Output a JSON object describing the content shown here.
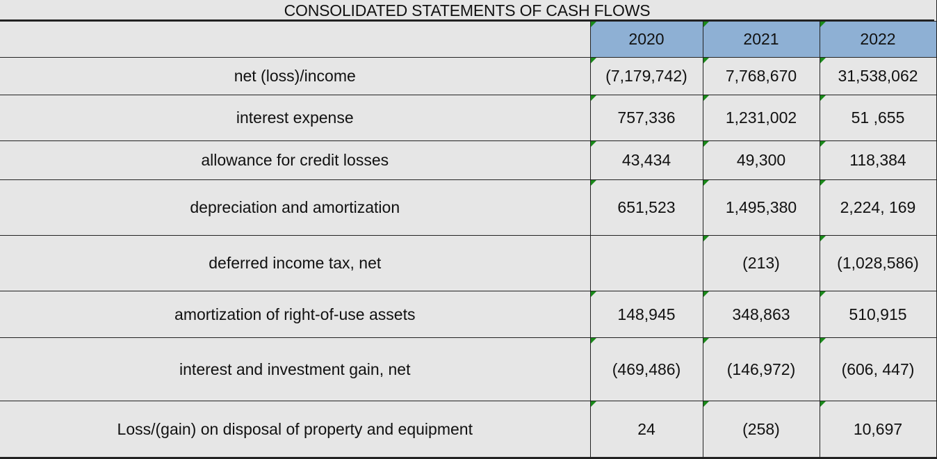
{
  "title": "CONSOLIDATED STATEMENTS OF CASH FLOWS",
  "header": {
    "label": "",
    "years": [
      "2020",
      "2021",
      "2022"
    ]
  },
  "rows": [
    {
      "label": "net (loss)/income",
      "values": [
        "(7,179,742)",
        "7,768,670",
        "31,538,062"
      ]
    },
    {
      "label": "interest expense",
      "values": [
        "757,336",
        "1,231,002",
        "51 ,655"
      ]
    },
    {
      "label": "allowance for credit losses",
      "values": [
        "43,434",
        "49,300",
        "118,384"
      ]
    },
    {
      "label": "depreciation and amortization",
      "values": [
        "651,523",
        "1,495,380",
        "2,224, 169"
      ]
    },
    {
      "label": "deferred income tax, net",
      "values": [
        "",
        "(213)",
        "(1,028,586)"
      ]
    },
    {
      "label": "amortization of right-of-use assets",
      "values": [
        "148,945",
        "348,863",
        "510,915"
      ]
    },
    {
      "label": "interest and investment gain, net",
      "values": [
        "(469,486)",
        "(146,972)",
        "(606, 447)"
      ]
    },
    {
      "label": "Loss/(gain) on disposal of property and equipment",
      "values": [
        "24",
        "(258)",
        "10,697"
      ]
    }
  ],
  "colors": {
    "header_fill": "#8eb0d4",
    "cell_fill": "#e6e6e6",
    "comment_flag": "#1a8a1a"
  }
}
